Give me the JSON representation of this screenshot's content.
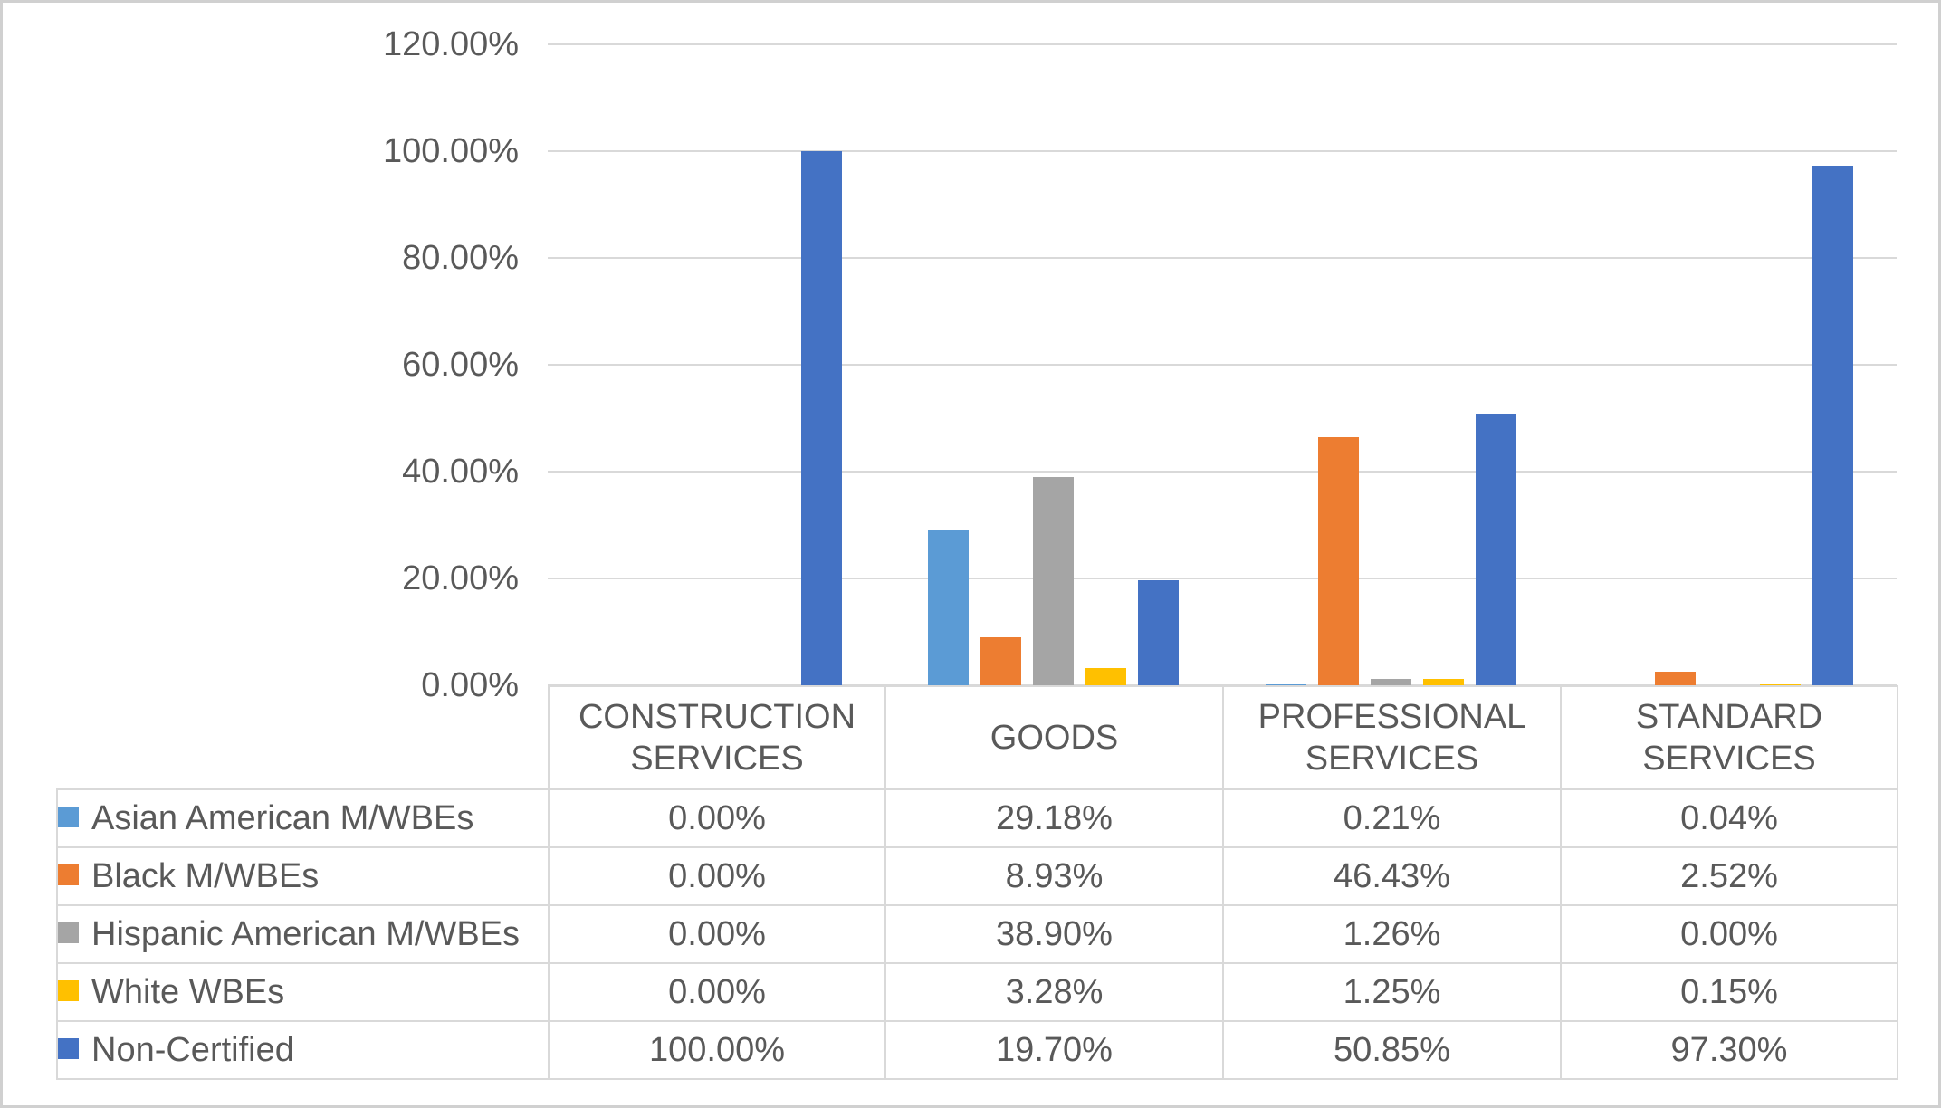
{
  "window": {
    "background_color": "#FFFFFF",
    "border_color": "#D0D0D0"
  },
  "style": {
    "text_color": "#595959",
    "gridline_color": "#D9D9D9",
    "table_border_color": "#D9D9D9"
  },
  "chart_data": {
    "type": "bar",
    "title": "",
    "xlabel": "",
    "ylabel": "",
    "grid": true,
    "legend_position": "data-table-left-column",
    "categories": [
      "CONSTRUCTION SERVICES",
      "GOODS",
      "PROFESSIONAL SERVICES",
      "STANDARD SERVICES"
    ],
    "series": [
      {
        "name": "Asian American M/WBEs",
        "color": "#5B9BD5",
        "values": [
          0.0,
          29.18,
          0.21,
          0.04
        ],
        "display": [
          "0.00%",
          "29.18%",
          "0.21%",
          "0.04%"
        ]
      },
      {
        "name": "Black M/WBEs",
        "color": "#ED7D31",
        "values": [
          0.0,
          8.93,
          46.43,
          2.52
        ],
        "display": [
          "0.00%",
          "8.93%",
          "46.43%",
          "2.52%"
        ]
      },
      {
        "name": "Hispanic American M/WBEs",
        "color": "#A5A5A5",
        "values": [
          0.0,
          38.9,
          1.26,
          0.0
        ],
        "display": [
          "0.00%",
          "38.90%",
          "1.26%",
          "0.00%"
        ]
      },
      {
        "name": "White WBEs",
        "color": "#FFC000",
        "values": [
          0.0,
          3.28,
          1.25,
          0.15
        ],
        "display": [
          "0.00%",
          "3.28%",
          "1.25%",
          "0.15%"
        ]
      },
      {
        "name": "Non-Certified",
        "color": "#4472C4",
        "values": [
          100.0,
          19.7,
          50.85,
          97.3
        ],
        "display": [
          "100.00%",
          "19.70%",
          "50.85%",
          "97.30%"
        ]
      }
    ],
    "y_axis": {
      "min": 0,
      "max": 120,
      "step": 20,
      "tick_labels": [
        "120.00%",
        "100.00%",
        "80.00%",
        "60.00%",
        "40.00%",
        "20.00%",
        "0.00%"
      ]
    }
  },
  "table": {
    "col_headers": [
      "CONSTRUCTION\nSERVICES",
      "GOODS",
      "PROFESSIONAL\nSERVICES",
      "STANDARD\nSERVICES"
    ]
  }
}
